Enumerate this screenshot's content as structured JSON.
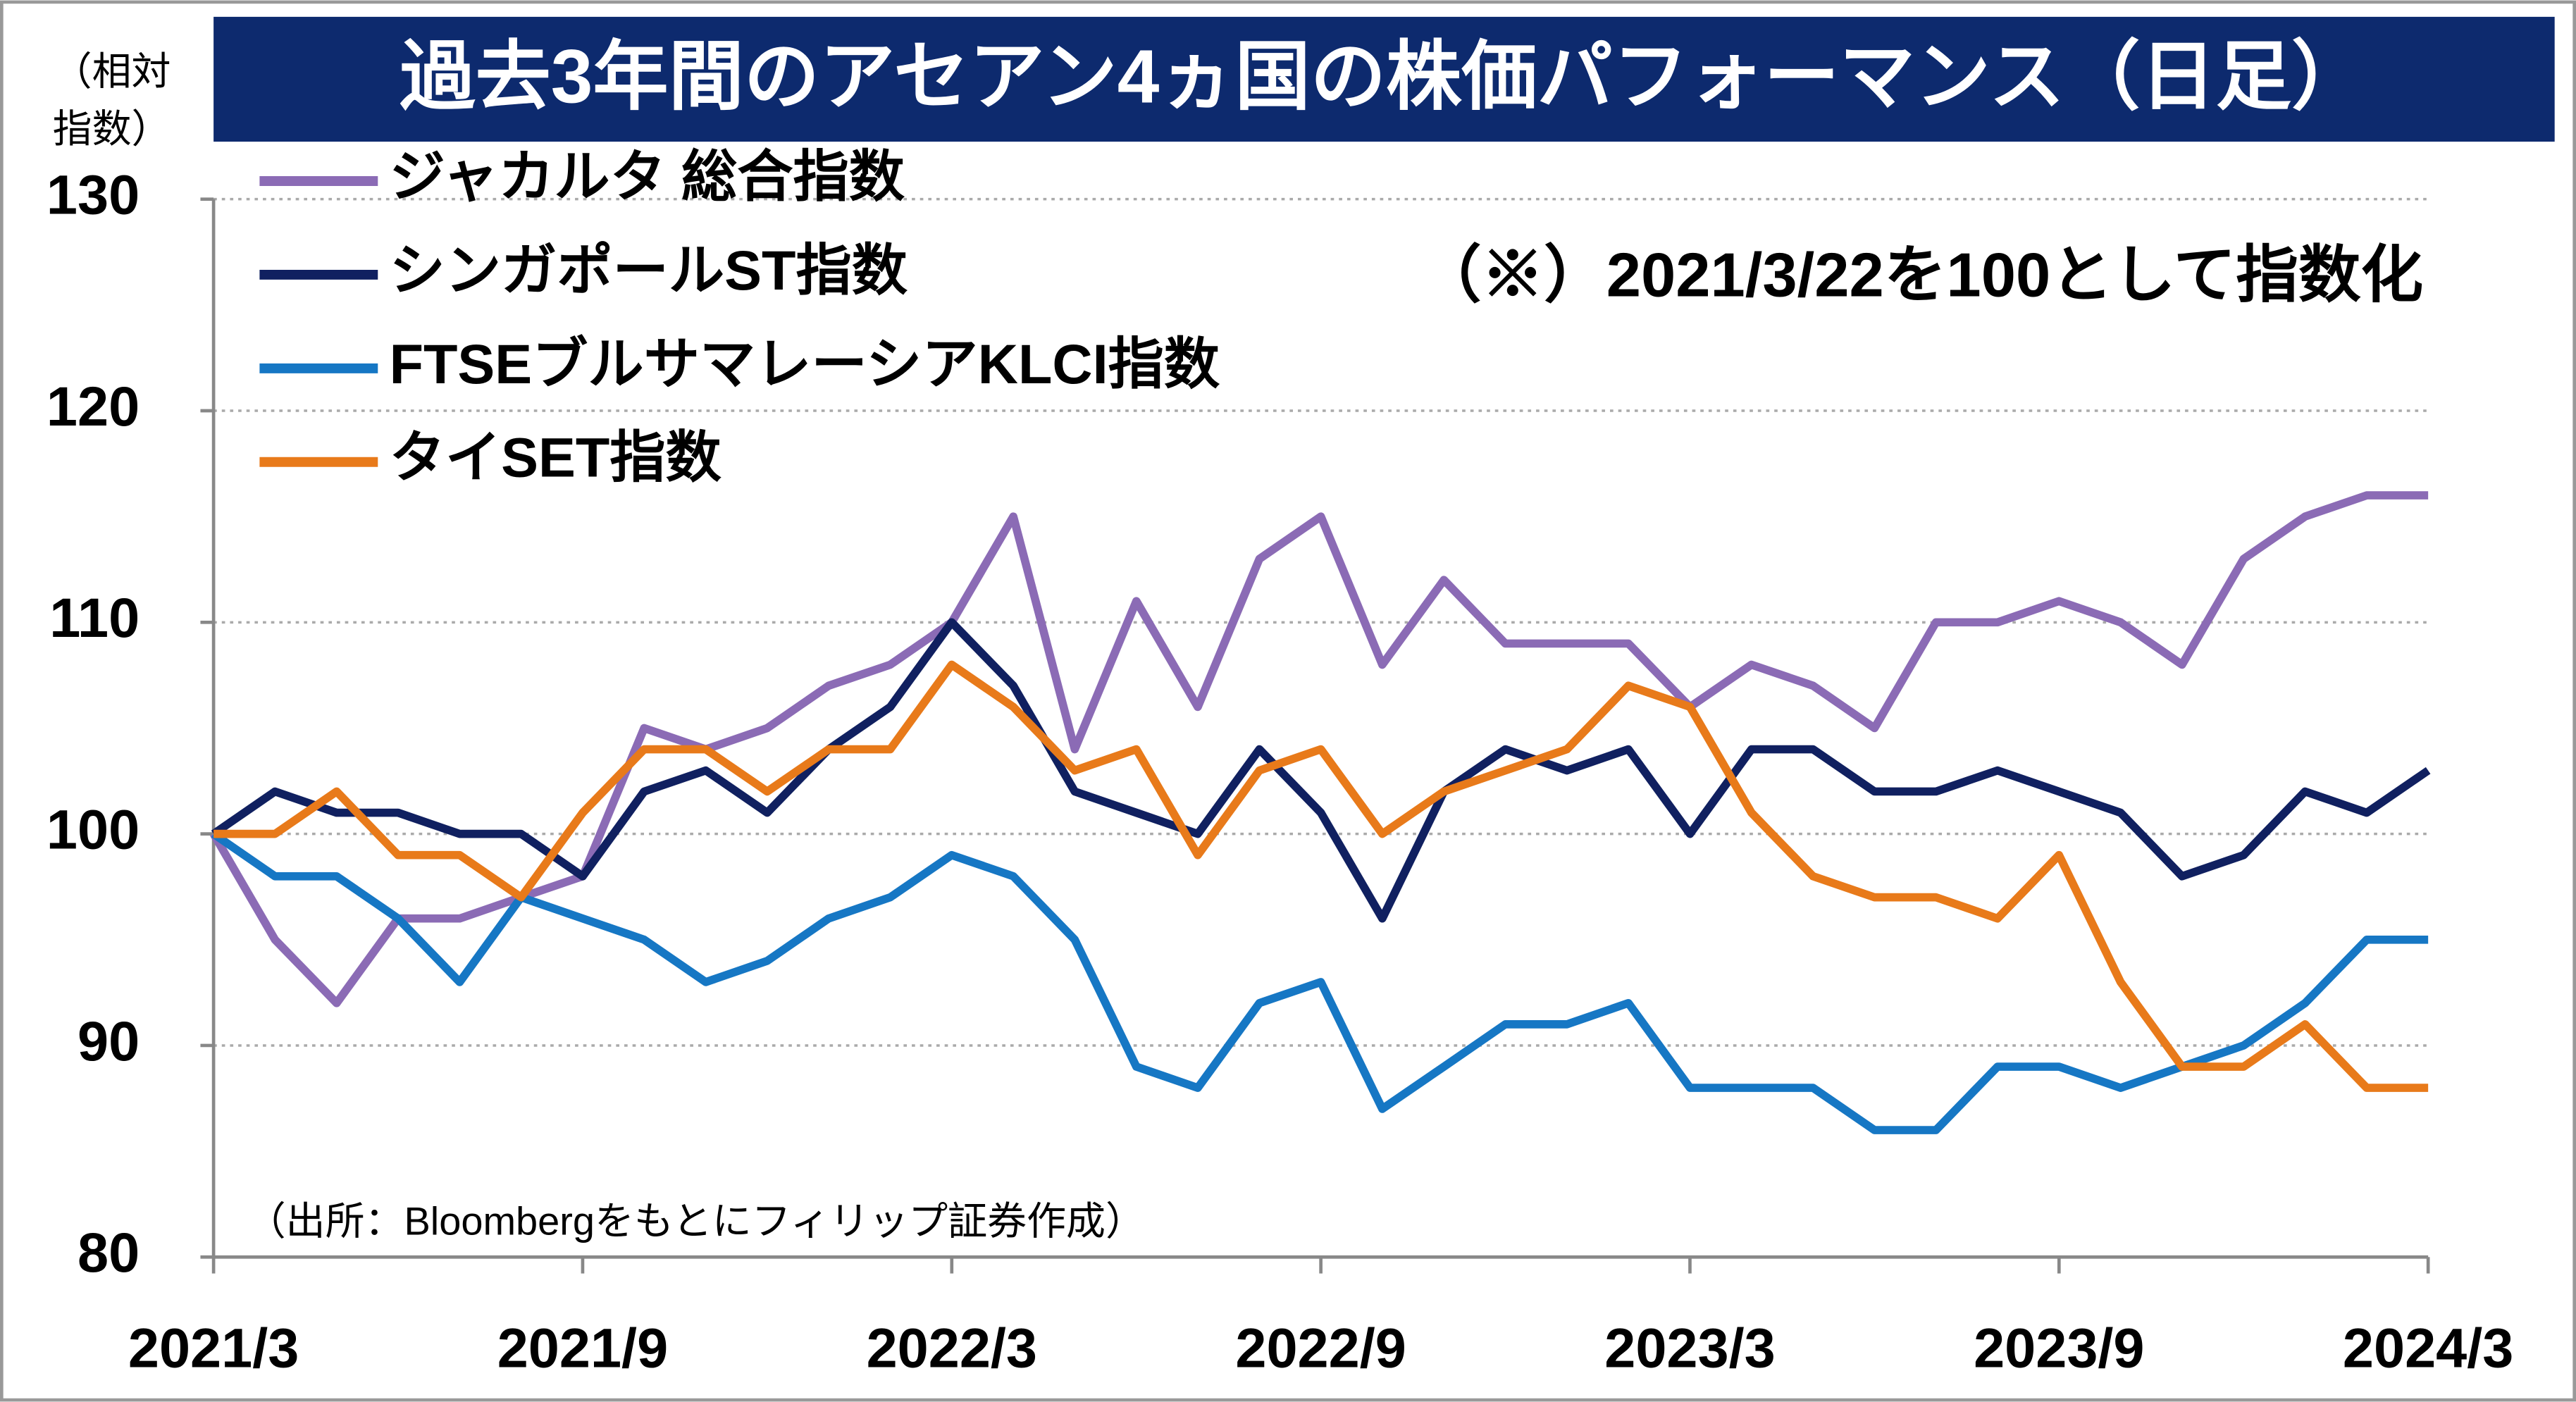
{
  "chart_data": {
    "type": "line",
    "title": "過去3年間のアセアン4ヵ国の株価パフォーマンス（日足）",
    "y_label": [
      "（相対",
      "指数）"
    ],
    "note": "（※）2021/3/22を100として指数化",
    "source": "（出所：Bloombergをもとにフィリップ証券作成）",
    "categories": [
      "2021/3",
      null,
      null,
      null,
      null,
      null,
      "2021/9",
      null,
      null,
      null,
      null,
      null,
      "2022/3",
      null,
      null,
      null,
      null,
      null,
      "2022/9",
      null,
      null,
      null,
      null,
      null,
      "2023/3",
      null,
      null,
      null,
      null,
      null,
      "2023/9",
      null,
      null,
      null,
      null,
      null,
      "2024/3"
    ],
    "series": [
      {
        "name": "ジャカルタ 総合指数",
        "color": "#8b6bb5",
        "values": [
          100,
          95,
          92,
          96,
          96,
          97,
          98,
          105,
          104,
          105,
          107,
          108,
          110,
          115,
          104,
          111,
          106,
          113,
          115,
          108,
          112,
          109,
          109,
          109,
          106,
          108,
          107,
          105,
          110,
          110,
          111,
          110,
          108,
          113,
          115,
          116,
          116
        ]
      },
      {
        "name": "シンガポールST指数",
        "color": "#102060",
        "values": [
          100,
          102,
          101,
          101,
          100,
          100,
          98,
          102,
          103,
          101,
          104,
          106,
          110,
          107,
          102,
          101,
          100,
          104,
          101,
          96,
          102,
          104,
          103,
          104,
          100,
          104,
          104,
          102,
          102,
          103,
          102,
          101,
          98,
          99,
          102,
          101,
          103
        ]
      },
      {
        "name": "FTSEブルサマレーシアKLCI指数",
        "color": "#1677c4",
        "values": [
          100,
          98,
          98,
          96,
          93,
          97,
          96,
          95,
          93,
          94,
          96,
          97,
          99,
          98,
          95,
          89,
          88,
          92,
          93,
          87,
          89,
          91,
          91,
          92,
          88,
          88,
          88,
          86,
          86,
          89,
          89,
          88,
          89,
          90,
          92,
          95,
          95
        ]
      },
      {
        "name": "タイSET指数",
        "color": "#e87a1a",
        "values": [
          100,
          100,
          102,
          99,
          99,
          97,
          101,
          104,
          104,
          102,
          104,
          104,
          108,
          106,
          103,
          104,
          99,
          103,
          104,
          100,
          102,
          103,
          104,
          107,
          106,
          101,
          98,
          97,
          97,
          96,
          99,
          93,
          89,
          89,
          91,
          88,
          88
        ]
      }
    ],
    "ylim": [
      80,
      130
    ],
    "yticks": [
      80,
      90,
      100,
      110,
      120,
      130
    ],
    "grid": true
  }
}
